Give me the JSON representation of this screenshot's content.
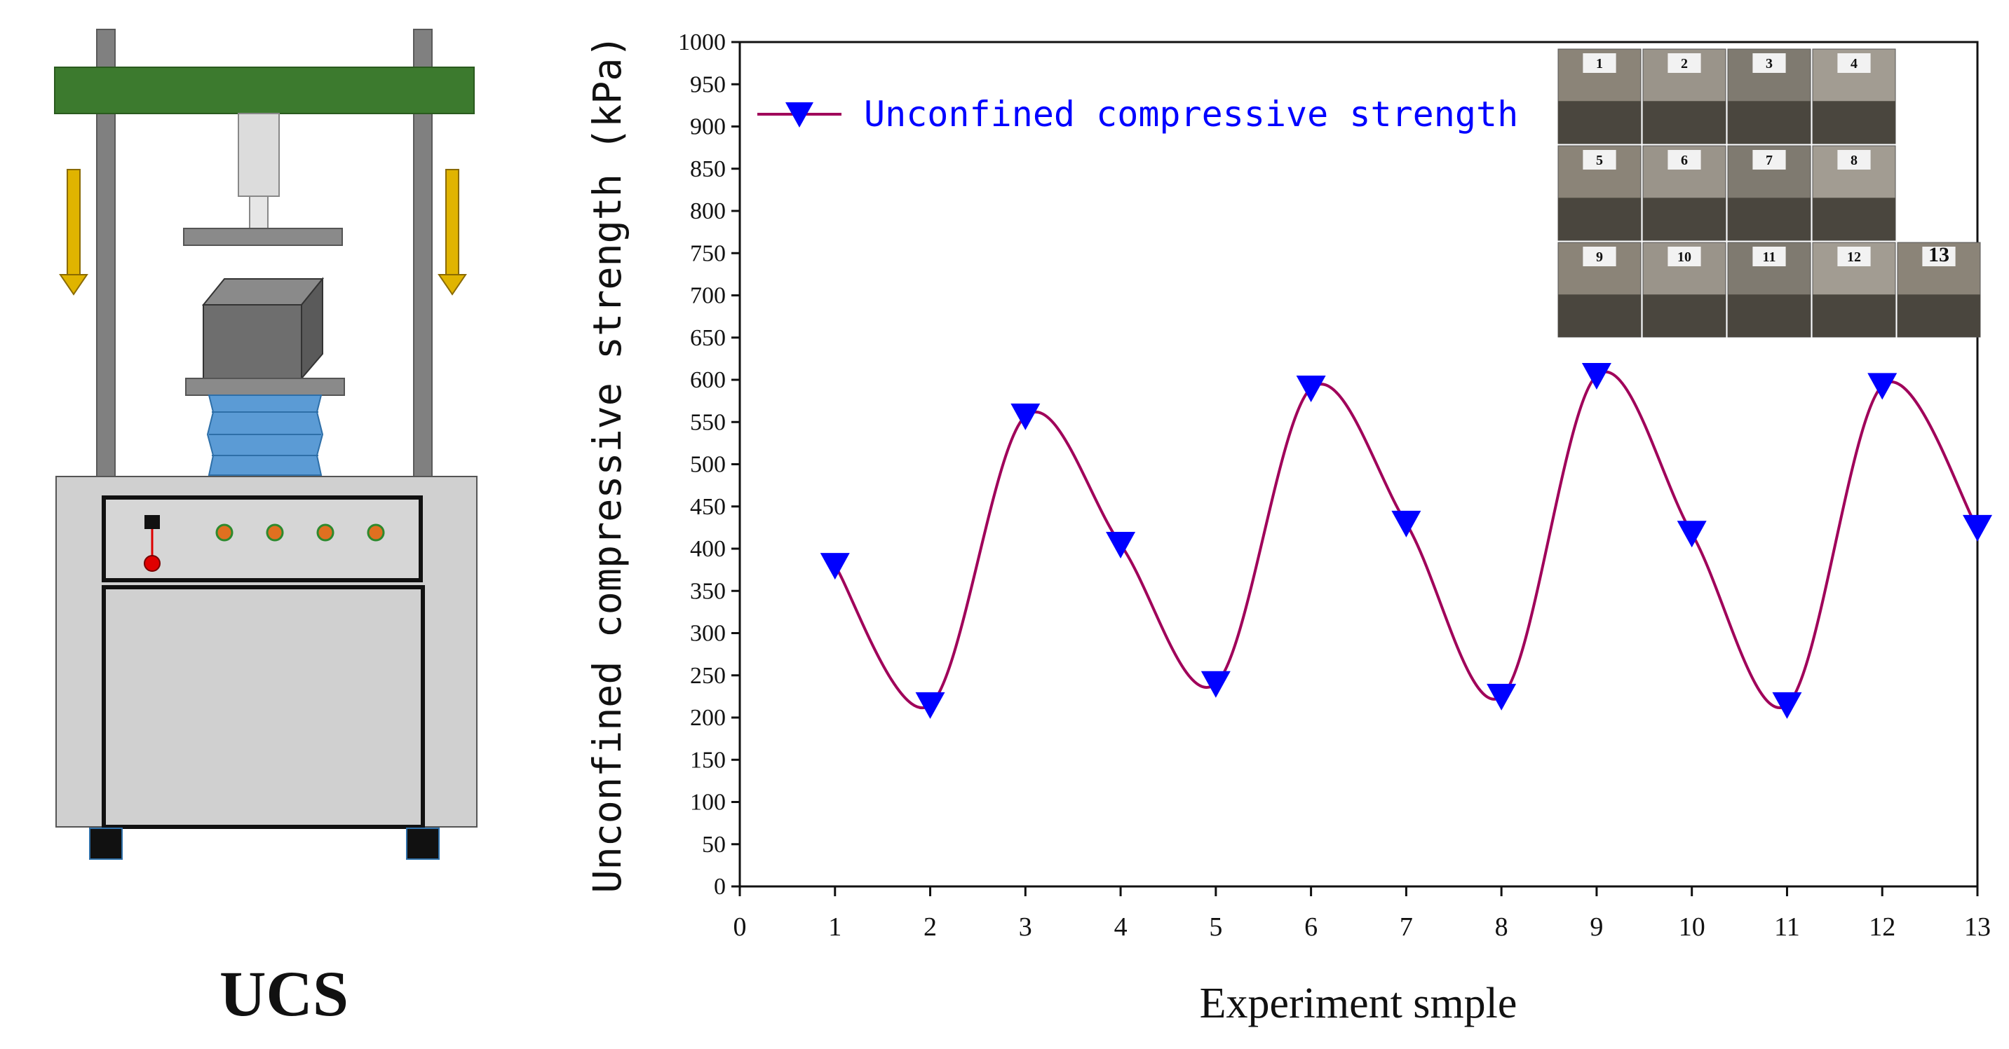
{
  "machine": {
    "title": "UCS",
    "colors": {
      "crossbar": "#3c7a2e",
      "frame": "#808080",
      "body": "#d0d0d0",
      "specimen": "#6e6e6e",
      "base": "#5b9bd5",
      "arrow": "#e0b400",
      "indicator": "#e07020"
    }
  },
  "chart_data": {
    "type": "line",
    "title": "",
    "xlabel": "Experiment smple",
    "ylabel": "Unconfined compressive strength (kPa)",
    "xlim": [
      0,
      13
    ],
    "ylim": [
      0,
      1000
    ],
    "x_ticks": [
      "0",
      "1",
      "2",
      "3",
      "4",
      "5",
      "6",
      "7",
      "8",
      "9",
      "10",
      "11",
      "12",
      "13"
    ],
    "y_ticks": [
      "0",
      "50",
      "100",
      "150",
      "200",
      "250",
      "300",
      "350",
      "400",
      "450",
      "500",
      "550",
      "600",
      "650",
      "700",
      "750",
      "800",
      "850",
      "900",
      "950",
      "1000"
    ],
    "series": [
      {
        "name": "Unconfined compressive strength",
        "marker": "triangle-down",
        "line_color": "#a0005a",
        "marker_color": "#0000ff",
        "x": [
          1,
          2,
          3,
          4,
          5,
          6,
          7,
          8,
          9,
          10,
          11,
          12,
          13
        ],
        "values": [
          380,
          215,
          557,
          405,
          240,
          590,
          430,
          225,
          605,
          418,
          215,
          593,
          425
        ]
      }
    ],
    "legend": "top-left",
    "grid": false,
    "inset_photo_labels": [
      "1",
      "2",
      "3",
      "4",
      "5",
      "6",
      "7",
      "8",
      "9",
      "10",
      "11",
      "12",
      "13"
    ]
  }
}
